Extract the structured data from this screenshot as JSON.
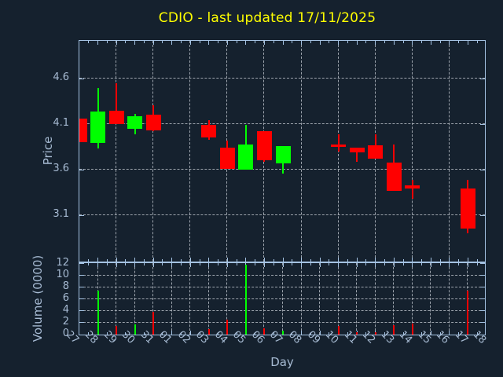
{
  "chart_data": {
    "type": "candlestick",
    "title": "CDIO - last updated 17/11/2025",
    "xlabel": "Day",
    "price_ylabel": "Price",
    "volume_ylabel": "Volume (0000)",
    "days": [
      "27",
      "28",
      "29",
      "30",
      "31",
      "01",
      "02",
      "03",
      "04",
      "05",
      "06",
      "07",
      "08",
      "09",
      "10",
      "11",
      "12",
      "13",
      "14",
      "15",
      "16",
      "17",
      "18"
    ],
    "price_ticks": [
      4.6,
      4.1,
      3.6,
      3.1
    ],
    "volume_ticks": [
      0,
      2,
      4,
      6,
      8,
      10,
      12
    ],
    "volume_gridlines": [
      2,
      4,
      6,
      8,
      10
    ],
    "price_axis_range": [
      2.583,
      5.014
    ],
    "volume_axis_max": 12.1,
    "grid": true,
    "legend": "none",
    "candles": [
      {
        "day": "27",
        "open": 4.16,
        "high": 4.16,
        "low": 3.9,
        "close": 3.9,
        "volume": 0,
        "direction": "down"
      },
      {
        "day": "28",
        "open": 3.89,
        "high": 4.5,
        "low": 3.83,
        "close": 4.24,
        "volume": 7.4,
        "direction": "up"
      },
      {
        "day": "29",
        "open": 4.25,
        "high": 4.55,
        "low": 4.1,
        "close": 4.1,
        "volume": 1.4,
        "direction": "down"
      },
      {
        "day": "30",
        "open": 4.05,
        "high": 4.21,
        "low": 3.99,
        "close": 4.19,
        "volume": 1.7,
        "direction": "up"
      },
      {
        "day": "31",
        "open": 4.2,
        "high": 4.31,
        "low": 4.02,
        "close": 4.03,
        "volume": 3.8,
        "direction": "down"
      },
      {
        "day": "03",
        "open": 4.09,
        "high": 4.14,
        "low": 3.93,
        "close": 3.95,
        "volume": 0.9,
        "direction": "down"
      },
      {
        "day": "04",
        "open": 3.84,
        "high": 3.92,
        "low": 3.61,
        "close": 3.61,
        "volume": 2.5,
        "direction": "down"
      },
      {
        "day": "05",
        "open": 3.6,
        "high": 4.09,
        "low": 3.6,
        "close": 3.88,
        "volume": 11.8,
        "direction": "up"
      },
      {
        "day": "06",
        "open": 4.02,
        "high": 4.02,
        "low": 3.69,
        "close": 3.7,
        "volume": 1.0,
        "direction": "down"
      },
      {
        "day": "07",
        "open": 3.67,
        "high": 3.86,
        "low": 3.56,
        "close": 3.86,
        "volume": 0.7,
        "direction": "up"
      },
      {
        "day": "10",
        "open": 3.88,
        "high": 3.99,
        "low": 3.8,
        "close": 3.85,
        "volume": 1.4,
        "direction": "down"
      },
      {
        "day": "11",
        "open": 3.84,
        "high": 3.84,
        "low": 3.69,
        "close": 3.79,
        "volume": 0.35,
        "direction": "down"
      },
      {
        "day": "12",
        "open": 3.87,
        "high": 3.99,
        "low": 3.72,
        "close": 3.72,
        "volume": 0.45,
        "direction": "down"
      },
      {
        "day": "13",
        "open": 3.68,
        "high": 3.88,
        "low": 3.37,
        "close": 3.37,
        "volume": 1.55,
        "direction": "down"
      },
      {
        "day": "14",
        "open": 3.43,
        "high": 3.49,
        "low": 3.28,
        "close": 3.39,
        "volume": 1.85,
        "direction": "down"
      },
      {
        "day": "17",
        "open": 3.39,
        "high": 3.49,
        "low": 2.9,
        "close": 2.95,
        "volume": 7.4,
        "direction": "down"
      }
    ],
    "colors": {
      "up": "#00ff00",
      "down": "#ff0000",
      "background": "#15212e",
      "frame": "#a4c2e2",
      "grid": "#b4bac2",
      "tick_label": "#a6bad2",
      "title": "#ffff00"
    }
  }
}
